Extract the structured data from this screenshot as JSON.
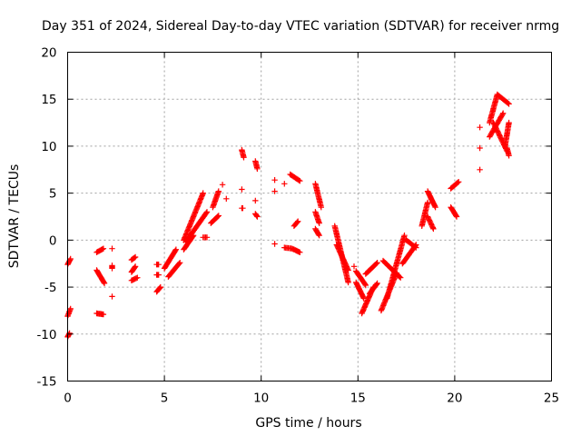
{
  "chart_data": {
    "type": "scatter",
    "title": "Day 351 of 2024, Sidereal Day-to-day VTEC variation (SDTVAR) for receiver nrmg",
    "xlabel": "GPS time / hours",
    "ylabel": "SDTVAR / TECUs",
    "xlim": [
      0,
      25
    ],
    "ylim": [
      -15,
      20
    ],
    "xticks": [
      "0",
      "5",
      "10",
      "15",
      "20",
      "25"
    ],
    "yticks": [
      "-15",
      "-10",
      "-5",
      "0",
      "5",
      "10",
      "15",
      "20"
    ],
    "grid": true,
    "marker": "plus",
    "color": "#ff0000",
    "segments": [
      {
        "x0": 0.0,
        "x1": 0.15,
        "y0": -2.6,
        "y1": -2.0
      },
      {
        "x0": 0.0,
        "x1": 0.15,
        "y0": -8.1,
        "y1": -7.3
      },
      {
        "x0": 0.0,
        "x1": 0.1,
        "y0": -10.3,
        "y1": -9.9
      },
      {
        "x0": 1.5,
        "x1": 1.85,
        "y0": -1.3,
        "y1": -0.9
      },
      {
        "x0": 1.5,
        "x1": 1.9,
        "y0": -3.2,
        "y1": -4.6
      },
      {
        "x0": 1.5,
        "x1": 1.85,
        "y0": -7.8,
        "y1": -7.9
      },
      {
        "x0": 2.3,
        "x1": 2.3,
        "y0": -0.9,
        "y1": -0.9
      },
      {
        "x0": 2.3,
        "x1": 2.3,
        "y0": -2.7,
        "y1": -3.0
      },
      {
        "x0": 2.3,
        "x1": 2.3,
        "y0": -6.0,
        "y1": -6.0
      },
      {
        "x0": 3.3,
        "x1": 3.5,
        "y0": -2.1,
        "y1": -1.8
      },
      {
        "x0": 3.3,
        "x1": 3.5,
        "y0": -3.4,
        "y1": -2.8
      },
      {
        "x0": 3.3,
        "x1": 3.6,
        "y0": -4.3,
        "y1": -4.0
      },
      {
        "x0": 4.6,
        "x1": 4.7,
        "y0": -2.6,
        "y1": -2.6
      },
      {
        "x0": 4.6,
        "x1": 4.7,
        "y0": -3.7,
        "y1": -3.7
      },
      {
        "x0": 4.6,
        "x1": 4.8,
        "y0": -5.5,
        "y1": -5.0
      },
      {
        "x0": 5.0,
        "x1": 5.6,
        "y0": -3.0,
        "y1": -1.0
      },
      {
        "x0": 5.2,
        "x1": 5.8,
        "y0": -3.9,
        "y1": -2.4
      },
      {
        "x0": 6.0,
        "x1": 7.0,
        "y0": 0.0,
        "y1": 5.0
      },
      {
        "x0": 6.1,
        "x1": 7.2,
        "y0": -0.2,
        "y1": 3.0
      },
      {
        "x0": 6.0,
        "x1": 6.5,
        "y0": -1.0,
        "y1": 0.5
      },
      {
        "x0": 7.0,
        "x1": 7.2,
        "y0": 0.3,
        "y1": 0.3
      },
      {
        "x0": 7.5,
        "x1": 7.8,
        "y0": 3.5,
        "y1": 5.2
      },
      {
        "x0": 7.4,
        "x1": 7.8,
        "y0": 1.8,
        "y1": 2.6
      },
      {
        "x0": 8.0,
        "x1": 8.0,
        "y0": 5.9,
        "y1": 5.9
      },
      {
        "x0": 8.2,
        "x1": 8.2,
        "y0": 4.4,
        "y1": 4.4
      },
      {
        "x0": 9.0,
        "x1": 9.1,
        "y0": 9.6,
        "y1": 8.8
      },
      {
        "x0": 9.0,
        "x1": 9.0,
        "y0": 5.4,
        "y1": 5.4
      },
      {
        "x0": 9.0,
        "x1": 9.05,
        "y0": 3.4,
        "y1": 3.4
      },
      {
        "x0": 9.7,
        "x1": 9.8,
        "y0": 8.4,
        "y1": 7.6
      },
      {
        "x0": 9.7,
        "x1": 9.7,
        "y0": 4.2,
        "y1": 4.2
      },
      {
        "x0": 9.7,
        "x1": 9.8,
        "y0": 2.8,
        "y1": 2.5
      },
      {
        "x0": 10.7,
        "x1": 10.7,
        "y0": 6.4,
        "y1": 6.4
      },
      {
        "x0": 10.7,
        "x1": 10.7,
        "y0": 5.2,
        "y1": 5.2
      },
      {
        "x0": 10.7,
        "x1": 10.7,
        "y0": -0.4,
        "y1": -0.4
      },
      {
        "x0": 11.2,
        "x1": 11.2,
        "y0": 6.0,
        "y1": 6.0
      },
      {
        "x0": 11.2,
        "x1": 11.6,
        "y0": -0.8,
        "y1": -0.9
      },
      {
        "x0": 11.5,
        "x1": 12.0,
        "y0": 7.0,
        "y1": 6.3
      },
      {
        "x0": 11.6,
        "x1": 12.0,
        "y0": -0.9,
        "y1": -1.3
      },
      {
        "x0": 11.7,
        "x1": 11.9,
        "y0": 1.5,
        "y1": 2.0
      },
      {
        "x0": 12.8,
        "x1": 13.1,
        "y0": 6.0,
        "y1": 3.5
      },
      {
        "x0": 12.8,
        "x1": 13.0,
        "y0": 3.0,
        "y1": 1.8
      },
      {
        "x0": 12.8,
        "x1": 13.0,
        "y0": 1.2,
        "y1": 0.5
      },
      {
        "x0": 13.8,
        "x1": 14.5,
        "y0": 1.5,
        "y1": -4.5
      },
      {
        "x0": 13.9,
        "x1": 14.5,
        "y0": -0.5,
        "y1": -3.2
      },
      {
        "x0": 14.8,
        "x1": 14.8,
        "y0": -2.8,
        "y1": -2.8
      },
      {
        "x0": 14.9,
        "x1": 15.3,
        "y0": -4.5,
        "y1": -6.2
      },
      {
        "x0": 14.9,
        "x1": 15.4,
        "y0": -3.3,
        "y1": -4.8
      },
      {
        "x0": 15.2,
        "x1": 15.8,
        "y0": -7.8,
        "y1": -5.0
      },
      {
        "x0": 15.4,
        "x1": 16.0,
        "y0": -3.6,
        "y1": -2.4
      },
      {
        "x0": 15.6,
        "x1": 16.0,
        "y0": -5.7,
        "y1": -4.6
      },
      {
        "x0": 16.2,
        "x1": 17.0,
        "y0": -7.5,
        "y1": -3.5
      },
      {
        "x0": 16.3,
        "x1": 17.2,
        "y0": -2.2,
        "y1": -4.0
      },
      {
        "x0": 16.5,
        "x1": 17.4,
        "y0": -6.2,
        "y1": 0.5
      },
      {
        "x0": 17.3,
        "x1": 18.0,
        "y0": -2.5,
        "y1": -0.5
      },
      {
        "x0": 17.5,
        "x1": 18.0,
        "y0": 0.0,
        "y1": -0.8
      },
      {
        "x0": 18.3,
        "x1": 18.6,
        "y0": 1.5,
        "y1": 4.0
      },
      {
        "x0": 18.6,
        "x1": 19.0,
        "y0": 5.2,
        "y1": 3.5
      },
      {
        "x0": 18.6,
        "x1": 18.9,
        "y0": 2.5,
        "y1": 1.2
      },
      {
        "x0": 19.8,
        "x1": 20.2,
        "y0": 5.5,
        "y1": 6.2
      },
      {
        "x0": 19.8,
        "x1": 20.1,
        "y0": 3.5,
        "y1": 2.5
      },
      {
        "x0": 21.3,
        "x1": 21.3,
        "y0": 12.0,
        "y1": 12.0
      },
      {
        "x0": 21.3,
        "x1": 21.3,
        "y0": 9.8,
        "y1": 9.8
      },
      {
        "x0": 21.3,
        "x1": 21.3,
        "y0": 7.5,
        "y1": 7.5
      },
      {
        "x0": 21.8,
        "x1": 22.2,
        "y0": 12.5,
        "y1": 15.5
      },
      {
        "x0": 22.2,
        "x1": 22.8,
        "y0": 15.5,
        "y1": 14.5
      },
      {
        "x0": 21.8,
        "x1": 22.5,
        "y0": 11.0,
        "y1": 13.5
      },
      {
        "x0": 22.0,
        "x1": 22.7,
        "y0": 12.5,
        "y1": 9.5
      },
      {
        "x0": 22.6,
        "x1": 22.8,
        "y0": 10.0,
        "y1": 12.5
      },
      {
        "x0": 22.7,
        "x1": 22.8,
        "y0": 9.8,
        "y1": 9.0
      }
    ]
  }
}
